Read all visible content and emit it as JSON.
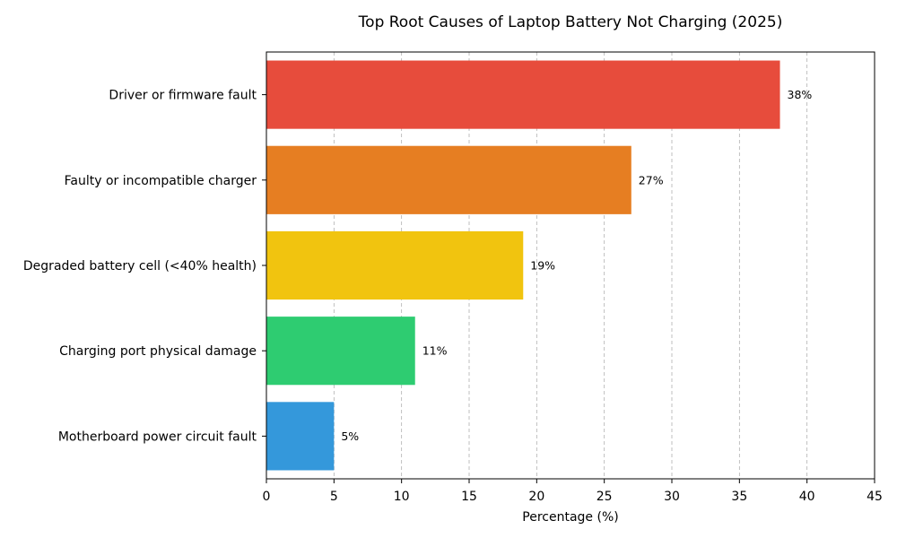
{
  "chart_data": {
    "type": "bar",
    "orientation": "horizontal",
    "title": "Top Root Causes of Laptop Battery Not Charging (2025)",
    "xlabel": "Percentage (%)",
    "ylabel": "",
    "xlim": [
      0,
      45
    ],
    "xticks": [
      0,
      5,
      10,
      15,
      20,
      25,
      30,
      35,
      40,
      45
    ],
    "grid": "vertical dashed",
    "categories": [
      "Driver or firmware fault",
      "Faulty or incompatible charger",
      "Degraded battery cell (<40% health)",
      "Charging port physical damage",
      "Motherboard power circuit fault"
    ],
    "values": [
      38,
      27,
      19,
      11,
      5
    ],
    "data_labels": [
      "38%",
      "27%",
      "19%",
      "11%",
      "5%"
    ],
    "colors": [
      "#e74c3c",
      "#e67e22",
      "#f1c40f",
      "#2ecc71",
      "#3498db"
    ]
  }
}
